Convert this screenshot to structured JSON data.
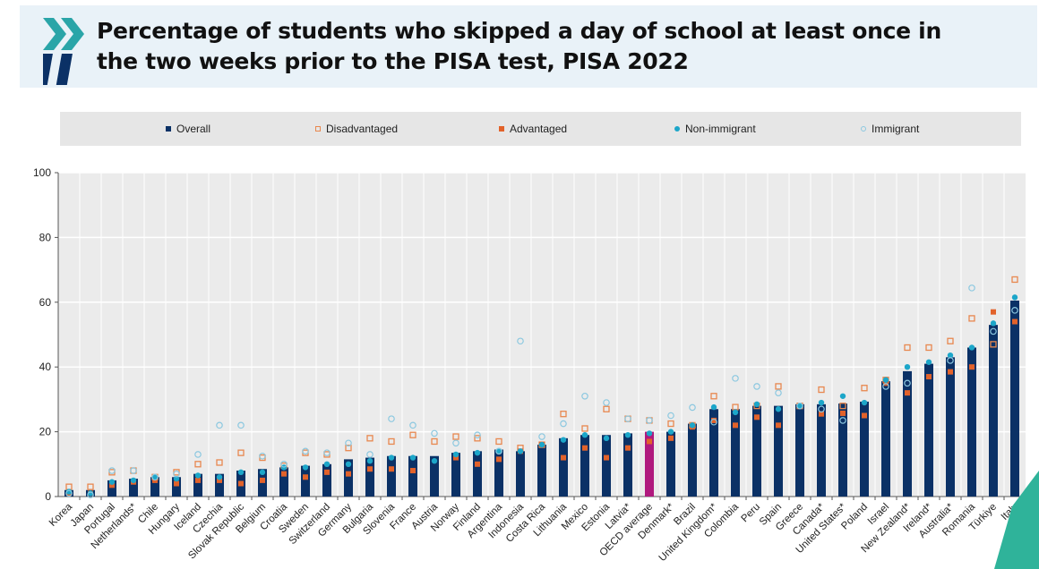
{
  "header": {
    "title_line1": "Percentage of students who skipped a day of school at least once in",
    "title_line2": "the two weeks prior to the PISA test, PISA 2022"
  },
  "colors": {
    "overall": "#0b3166",
    "oecd": "#b0197e",
    "disadvantaged": "#e8884f",
    "advantaged": "#e2622a",
    "non_immigrant": "#1ca6c9",
    "immigrant": "#8cc8e0",
    "header_bg": "#e9f2f8",
    "plot_bg": "#ebebeb"
  },
  "chart_data": {
    "type": "bar",
    "title": "Percentage of students who skipped a day of school at least once in the two weeks prior to the PISA test, PISA 2022",
    "xlabel": "",
    "ylabel": "",
    "ylim": [
      0,
      100
    ],
    "yticks": [
      0,
      20,
      40,
      60,
      80,
      100
    ],
    "grid": true,
    "legend_position": "top",
    "categories": [
      "Korea",
      "Japan",
      "Portugal",
      "Netherlands*",
      "Chile",
      "Hungary",
      "Iceland",
      "Czechia",
      "Slovak Republic",
      "Belgium",
      "Croatia",
      "Sweden",
      "Switzerland",
      "Germany",
      "Bulgaria",
      "Slovenia",
      "France",
      "Austria",
      "Norway",
      "Finland",
      "Argentina",
      "Indonesia",
      "Costa Rica",
      "Lithuania",
      "Mexico",
      "Estonia",
      "Latvia*",
      "OECD average",
      "Denmark*",
      "Brazil",
      "United Kingdom*",
      "Colombia",
      "Peru",
      "Spain",
      "Greece",
      "Canada*",
      "United States*",
      "Poland",
      "Israel",
      "New Zealand*",
      "Ireland*",
      "Australia*",
      "Romania",
      "Türkiye",
      "Italy"
    ],
    "series": [
      {
        "name": "Overall",
        "marker": "bar",
        "values": [
          2,
          2,
          5,
          5.5,
          6,
          6,
          7,
          7,
          8,
          8.5,
          9,
          9.5,
          10,
          11.5,
          12,
          12.5,
          12.5,
          12.5,
          13.5,
          14,
          14.5,
          14,
          16,
          18,
          19,
          19,
          19.5,
          20,
          20,
          22.5,
          27,
          27,
          28,
          28,
          28.5,
          28.5,
          28.7,
          29.3,
          35.6,
          38.7,
          41,
          43,
          46,
          53,
          60.5
        ]
      },
      {
        "name": "Disadvantaged",
        "marker": "open-square",
        "values": [
          3,
          3,
          7.5,
          8,
          6,
          7.5,
          10,
          10.5,
          13.5,
          12,
          9.5,
          13.5,
          13,
          15,
          18,
          17,
          19,
          17,
          18.5,
          18,
          17,
          15,
          16,
          25.5,
          21,
          27,
          24,
          23.5,
          22.5,
          22,
          31,
          27.6,
          28,
          34,
          28,
          33,
          28,
          33.5,
          36,
          46,
          46,
          48,
          55,
          47,
          67
        ]
      },
      {
        "name": "Advantaged",
        "marker": "filled-square",
        "values": [
          1,
          1,
          3.5,
          4.5,
          5,
          4,
          5,
          5,
          4,
          5,
          7,
          6,
          7.5,
          7,
          8.5,
          8.5,
          8,
          null,
          12,
          10,
          11.5,
          14,
          16,
          12,
          15,
          12,
          15,
          17,
          18,
          21.5,
          23.5,
          22,
          24.5,
          22,
          28,
          25.5,
          25.7,
          25,
          35,
          32,
          37,
          38.5,
          40,
          57,
          54
        ]
      },
      {
        "name": "Non-immigrant",
        "marker": "filled-circle",
        "values": [
          1.5,
          1,
          4.5,
          5,
          6,
          5.5,
          6.5,
          6,
          7.5,
          7.5,
          9,
          9,
          10,
          10,
          11,
          12,
          12,
          11,
          13,
          13.5,
          14,
          14,
          16,
          17.5,
          19,
          18,
          19,
          19.5,
          20,
          22,
          27.6,
          26,
          28.5,
          27,
          28,
          29,
          31,
          29,
          36,
          40,
          41.5,
          43.6,
          46,
          53.5,
          61.5
        ]
      },
      {
        "name": "Immigrant",
        "marker": "open-circle",
        "values": [
          1,
          0.5,
          8,
          8,
          6,
          7,
          13,
          22,
          22,
          12.5,
          10,
          14,
          13.5,
          16.5,
          13,
          24,
          22,
          19.5,
          16.5,
          19,
          14,
          48,
          18.5,
          22.5,
          31,
          29,
          24,
          23.5,
          25,
          27.5,
          23,
          36.5,
          34,
          32,
          28,
          27,
          23.5,
          null,
          34,
          35,
          null,
          42,
          64.4,
          51,
          57.5
        ]
      }
    ]
  }
}
